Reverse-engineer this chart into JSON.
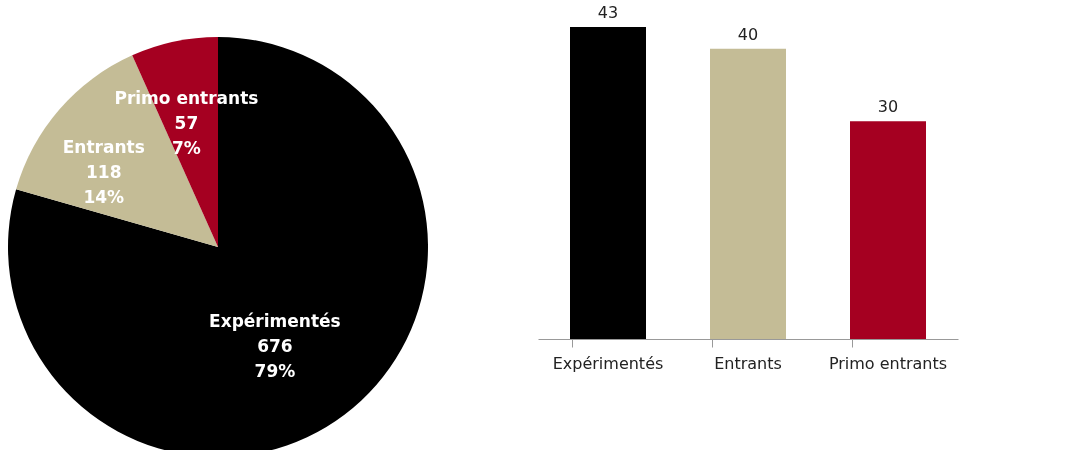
{
  "chart_data": [
    {
      "type": "pie",
      "categories": [
        "Expérimentés",
        "Entrants",
        "Primo entrants"
      ],
      "values": [
        676,
        118,
        57
      ],
      "colors": [
        "#000000",
        "#c4bc96",
        "#a50021"
      ],
      "value_labels": [
        "676 79%",
        "118 14%",
        "57 7%"
      ]
    },
    {
      "type": "bar",
      "categories": [
        "Expérimentés",
        "Entrants",
        "Primo entrants"
      ],
      "values": [
        43,
        40,
        30
      ],
      "colors": [
        "#000000",
        "#c4bc96",
        "#a50021"
      ],
      "data_labels": true
    }
  ]
}
